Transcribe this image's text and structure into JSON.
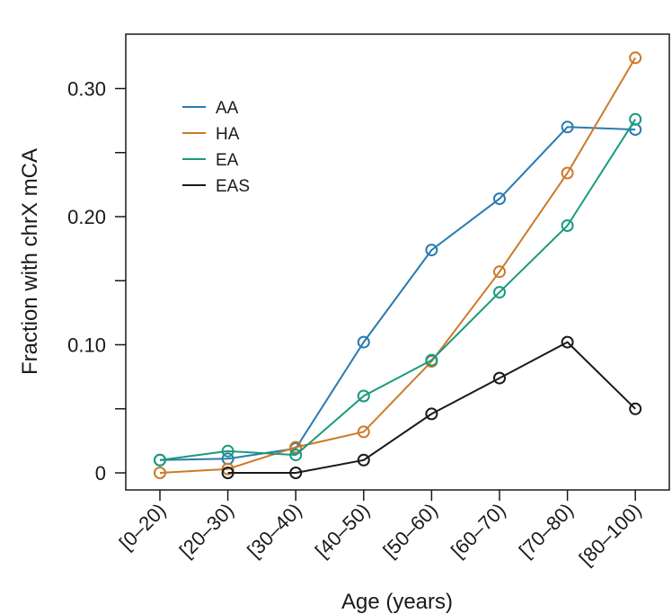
{
  "chart_data": {
    "type": "line",
    "title": "",
    "xlabel": "Age (years)",
    "ylabel": "Fraction with chrX mCA",
    "categories": [
      "[0–20)",
      "[20–30)",
      "[30–40)",
      "[40–50)",
      "[50–60)",
      "[60–70)",
      "[70–80)",
      "[80–100)"
    ],
    "ylim": [
      -0.01,
      0.34
    ],
    "yticks": [
      0,
      0.05,
      0.1,
      0.15,
      0.2,
      0.25,
      0.3
    ],
    "yticklabels": [
      "0",
      "",
      "0.10",
      "",
      "0.20",
      "",
      "0.30"
    ],
    "grid": false,
    "legend_position": "top-left",
    "series": [
      {
        "name": "AA",
        "color": "#2a7bb0",
        "values": [
          0.01,
          0.011,
          0.019,
          0.102,
          0.174,
          0.214,
          0.27,
          0.268
        ]
      },
      {
        "name": "HA",
        "color": "#cc7a2a",
        "values": [
          0.0,
          0.003,
          0.02,
          0.032,
          0.087,
          0.157,
          0.234,
          0.324
        ]
      },
      {
        "name": "EA",
        "color": "#1a9a7e",
        "values": [
          0.01,
          0.017,
          0.014,
          0.06,
          0.088,
          0.141,
          0.193,
          0.276
        ]
      },
      {
        "name": "EAS",
        "color": "#1a1a1a",
        "values": [
          null,
          0.0,
          0.0,
          0.01,
          0.046,
          0.074,
          0.102,
          0.05
        ]
      }
    ]
  }
}
